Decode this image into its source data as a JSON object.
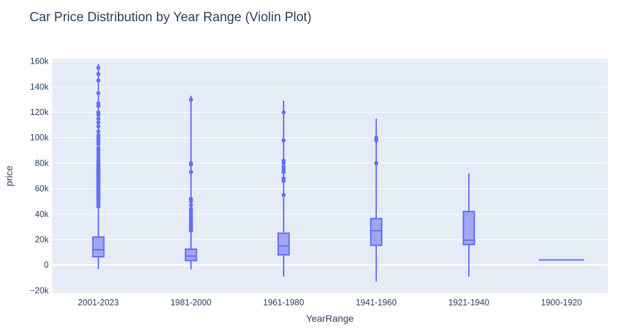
{
  "chart_data": {
    "type": "violin",
    "title": "Car Price Distribution by Year Range (Violin Plot)",
    "xlabel": "YearRange",
    "ylabel": "price",
    "ylim": [
      -22000,
      162000
    ],
    "yticks": [
      -20000,
      0,
      20000,
      40000,
      60000,
      80000,
      100000,
      120000,
      140000,
      160000
    ],
    "ytick_labels": [
      "−20k",
      "0",
      "20k",
      "40k",
      "60k",
      "80k",
      "100k",
      "120k",
      "140k",
      "160k"
    ],
    "grid": true,
    "legend": "none",
    "colors": {
      "series": "#636efa",
      "box_fill": "#a1a6f4",
      "plot_bg": "#e5ecf6",
      "grid": "#ffffff",
      "text": "#2a3f5f"
    },
    "categories": [
      "2001-2023",
      "1981-2000",
      "1961-1980",
      "1941-1960",
      "1921-1940",
      "1900-1920"
    ],
    "series": [
      {
        "category": "2001-2023",
        "kde_min": -3000,
        "kde_max": 158000,
        "q1": 6500,
        "median": 12000,
        "q3": 22000,
        "whisker_low": 500,
        "whisker_high": 45000,
        "outliers": [
          46000,
          47000,
          48000,
          49000,
          50000,
          51000,
          52000,
          53000,
          54000,
          55000,
          56000,
          57000,
          58000,
          59000,
          60000,
          61000,
          62000,
          63000,
          64000,
          65000,
          66000,
          67000,
          68000,
          69000,
          70000,
          71000,
          72000,
          73000,
          74000,
          75000,
          76000,
          77000,
          78000,
          79000,
          80000,
          82000,
          84000,
          86000,
          88000,
          90000,
          92000,
          95000,
          97000,
          99000,
          100000,
          102000,
          105000,
          109000,
          112000,
          115000,
          118000,
          120000,
          125000,
          127000,
          135000,
          145000,
          150000,
          155000
        ]
      },
      {
        "category": "1981-2000",
        "kde_min": -3500,
        "kde_max": 133000,
        "q1": 3500,
        "median": 7000,
        "q3": 12500,
        "whisker_low": 200,
        "whisker_high": 26000,
        "outliers": [
          27000,
          28000,
          29000,
          30000,
          31000,
          32000,
          33000,
          34000,
          36000,
          38000,
          40000,
          42000,
          44000,
          47000,
          50000,
          52000,
          73000,
          79000,
          80000,
          130000
        ]
      },
      {
        "category": "1961-1980",
        "kde_min": -9000,
        "kde_max": 129000,
        "q1": 8000,
        "median": 15000,
        "q3": 25000,
        "whisker_low": 500,
        "whisker_high": 52000,
        "outliers": [
          55000,
          66000,
          68000,
          73000,
          75000,
          77000,
          80000,
          82000,
          98000,
          120000
        ]
      },
      {
        "category": "1941-1960",
        "kde_min": -13000,
        "kde_max": 115000,
        "q1": 15500,
        "median": 27000,
        "q3": 36500,
        "whisker_low": 1000,
        "whisker_high": 60000,
        "outliers": [
          80000,
          98000,
          100000
        ]
      },
      {
        "category": "1921-1940",
        "kde_min": -9000,
        "kde_max": 72000,
        "q1": 16000,
        "median": 19500,
        "q3": 42000,
        "whisker_low": 5000,
        "whisker_high": 70000,
        "outliers": []
      },
      {
        "category": "1900-1920",
        "kde_min": 4000,
        "kde_max": 4000,
        "q1": 4000,
        "median": 4000,
        "q3": 4000,
        "whisker_low": 4000,
        "whisker_high": 4000,
        "outliers": []
      }
    ]
  }
}
